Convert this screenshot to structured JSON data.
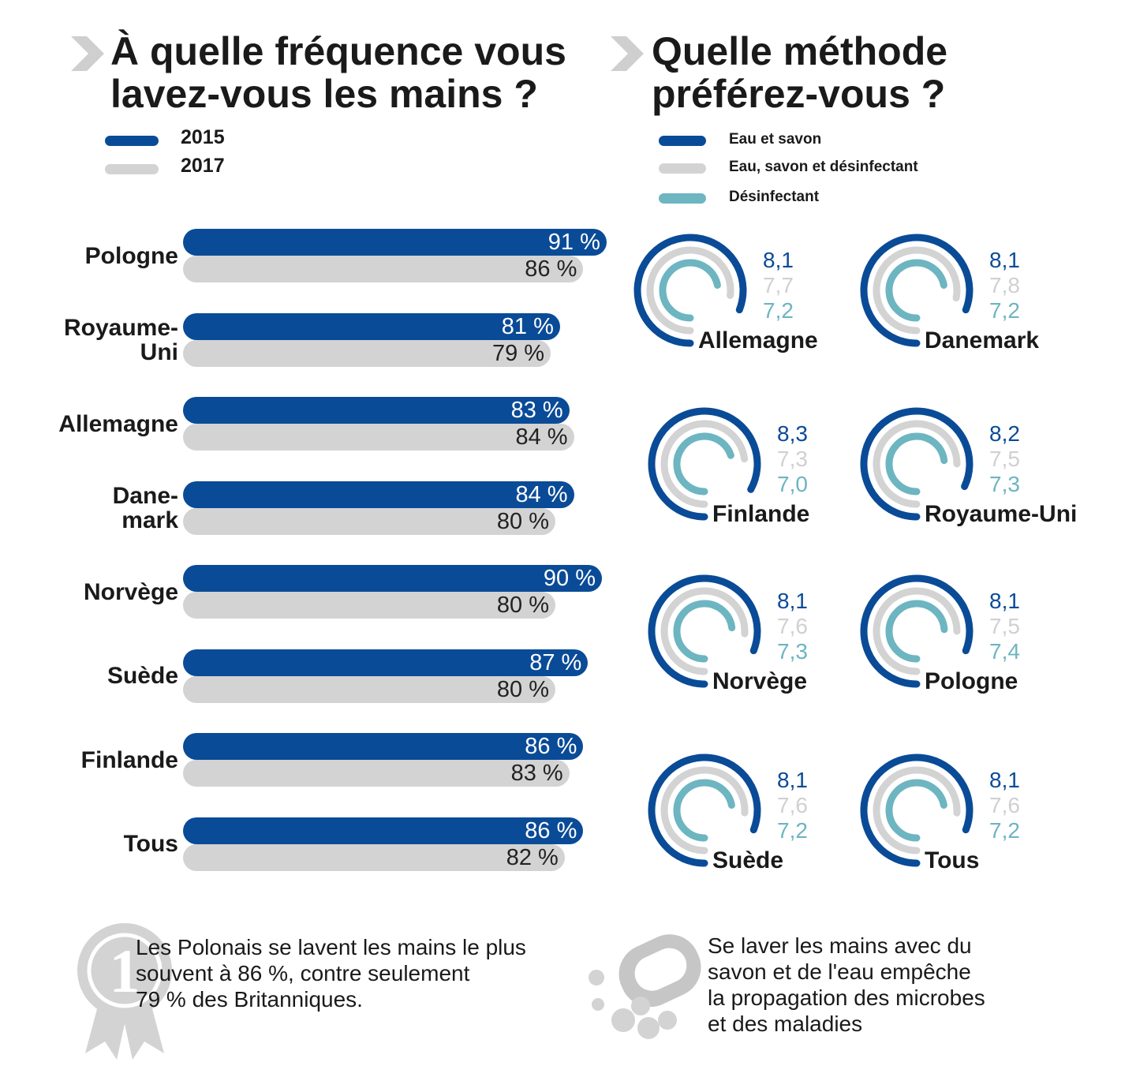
{
  "left": {
    "title_line1": "À quelle fréquence vous",
    "title_line2": "lavez-vous les mains ?",
    "legend": [
      {
        "label": "2015",
        "color": "#0a4b97"
      },
      {
        "label": "2017",
        "color": "#d3d3d3"
      }
    ],
    "note": "Les Polonais se lavent les mains le plus souvent à 86 %, contre seulement 79 % des Britanniques.",
    "note_lines": [
      "Les Polonais se lavent les mains le plus",
      "souvent à 86 %, contre seulement",
      "79 % des Britanniques."
    ],
    "note_icon": "award-ribbon-icon"
  },
  "right": {
    "title_line1": "Quelle méthode",
    "title_line2": "préférez-vous ?",
    "legend": [
      {
        "label": "Eau et savon",
        "color": "#0a4b97"
      },
      {
        "label": "Eau, savon et désinfectant",
        "color": "#d3d3d3"
      },
      {
        "label": "Désinfectant",
        "color": "#6db5c1"
      }
    ],
    "note": "Se laver les mains avec du savon et de l'eau empêche la propagation des microbes et des maladies",
    "note_lines": [
      "Se laver les mains avec du",
      "savon et de l'eau empêche",
      "la propagation des microbes",
      "et des maladies"
    ],
    "note_icon": "soap-bar-icon"
  },
  "colors": {
    "blue": "#0a4b97",
    "grey": "#d3d3d3",
    "teal": "#6db5c1",
    "label_grey": "#d0d0d0"
  },
  "chart_data": [
    {
      "type": "bar",
      "orientation": "horizontal",
      "title": "À quelle fréquence vous lavez-vous les mains ?",
      "categories": [
        "Pologne",
        "Royaume-Uni",
        "Allemagne",
        "Danemark",
        "Norvège",
        "Suède",
        "Finlande",
        "Tous"
      ],
      "category_lines": [
        [
          "Pologne"
        ],
        [
          "Royaume-",
          "Uni"
        ],
        [
          "Allemagne"
        ],
        [
          "Dane-",
          "mark"
        ],
        [
          "Norvège"
        ],
        [
          "Suède"
        ],
        [
          "Finlande"
        ],
        [
          "Tous"
        ]
      ],
      "series": [
        {
          "name": "2015",
          "values": [
            91,
            81,
            83,
            84,
            90,
            87,
            86,
            86
          ],
          "labels": [
            "91 %",
            "81 %",
            "83 %",
            "84 %",
            "90 %",
            "87 %",
            "86 %",
            "86 %"
          ]
        },
        {
          "name": "2017",
          "values": [
            86,
            79,
            84,
            80,
            80,
            80,
            83,
            82
          ],
          "labels": [
            "86 %",
            "79 %",
            "84 %",
            "80 %",
            "80 %",
            "80 %",
            "83 %",
            "82 %"
          ]
        }
      ],
      "unit": "%",
      "legend": "top-left",
      "grid": false
    },
    {
      "type": "radial-bar",
      "title": "Quelle méthode préférez-vous ?",
      "series_names": [
        "Eau et savon",
        "Eau, savon et désinfectant",
        "Désinfectant"
      ],
      "max": 10,
      "items": [
        {
          "name": "Allemagne",
          "values": [
            8.1,
            7.7,
            7.2
          ],
          "labels": [
            "8,1",
            "7,7",
            "7,2"
          ]
        },
        {
          "name": "Danemark",
          "values": [
            8.1,
            7.8,
            7.2
          ],
          "labels": [
            "8,1",
            "7,8",
            "7,2"
          ]
        },
        {
          "name": "Finlande",
          "values": [
            8.3,
            7.3,
            7.0
          ],
          "labels": [
            "8,3",
            "7,3",
            "7,0"
          ]
        },
        {
          "name": "Royaume-Uni",
          "values": [
            8.2,
            7.5,
            7.3
          ],
          "labels": [
            "8,2",
            "7,5",
            "7,3"
          ]
        },
        {
          "name": "Norvège",
          "values": [
            8.1,
            7.6,
            7.3
          ],
          "labels": [
            "8,1",
            "7,6",
            "7,3"
          ]
        },
        {
          "name": "Pologne",
          "values": [
            8.1,
            7.5,
            7.4
          ],
          "labels": [
            "8,1",
            "7,5",
            "7,4"
          ]
        },
        {
          "name": "Suède",
          "values": [
            8.1,
            7.6,
            7.2
          ],
          "labels": [
            "8,1",
            "7,6",
            "7,2"
          ]
        },
        {
          "name": "Tous",
          "values": [
            8.1,
            7.6,
            7.2
          ],
          "labels": [
            "8,1",
            "7,6",
            "7,2"
          ]
        }
      ],
      "legend": "top-left"
    }
  ]
}
